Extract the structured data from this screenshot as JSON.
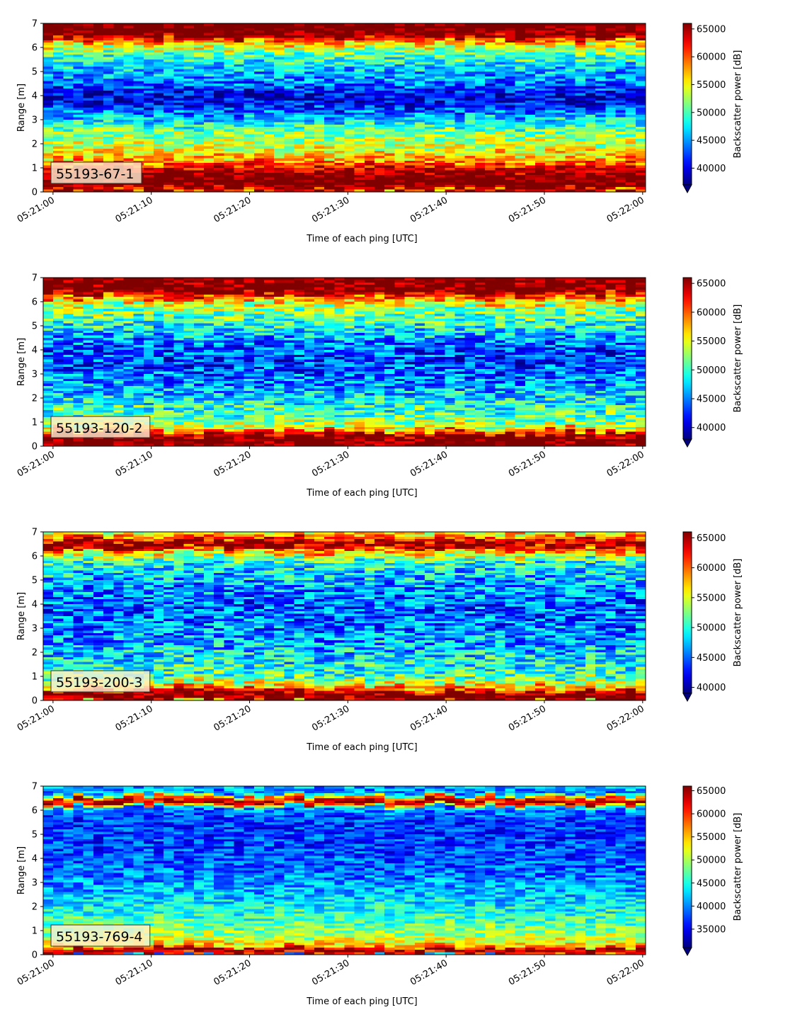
{
  "chart_data": [
    {
      "type": "heatmap",
      "label": "55193-67-1",
      "xlabel": "Time of each ping [UTC]",
      "ylabel": "Range [m]",
      "xticks": [
        "05:21:00",
        "05:21:10",
        "05:21:20",
        "05:21:30",
        "05:21:40",
        "05:21:50",
        "05:22:00"
      ],
      "xlim_seconds": [
        -1,
        60.3
      ],
      "yticks": [
        0,
        1,
        2,
        3,
        4,
        5,
        6,
        7
      ],
      "ylim": [
        0,
        7
      ],
      "colorbar": {
        "label": "Backscatter power [dB]",
        "ticks": [
          40000,
          45000,
          50000,
          55000,
          60000,
          65000
        ],
        "range": [
          37000,
          66000
        ],
        "extend": "min"
      },
      "colormap": "jet",
      "profile": [
        {
          "range": 0.0,
          "value": 58000
        },
        {
          "range": 0.25,
          "value": 68000
        },
        {
          "range": 0.7,
          "value": 67000
        },
        {
          "range": 1.1,
          "value": 61000
        },
        {
          "range": 1.4,
          "value": 57000
        },
        {
          "range": 1.8,
          "value": 54000
        },
        {
          "range": 2.4,
          "value": 52000
        },
        {
          "range": 3.0,
          "value": 47000
        },
        {
          "range": 3.6,
          "value": 41000
        },
        {
          "range": 4.0,
          "value": 39500
        },
        {
          "range": 4.5,
          "value": 44000
        },
        {
          "range": 5.2,
          "value": 47000
        },
        {
          "range": 5.8,
          "value": 51000
        },
        {
          "range": 6.2,
          "value": 57000
        },
        {
          "range": 6.5,
          "value": 67000
        },
        {
          "range": 7.0,
          "value": 68000
        }
      ],
      "noise": 4500
    },
    {
      "type": "heatmap",
      "label": "55193-120-2",
      "xlabel": "Time of each ping [UTC]",
      "ylabel": "Range [m]",
      "xticks": [
        "05:21:00",
        "05:21:10",
        "05:21:20",
        "05:21:30",
        "05:21:40",
        "05:21:50",
        "05:22:00"
      ],
      "xlim_seconds": [
        -1,
        60.3
      ],
      "yticks": [
        0,
        1,
        2,
        3,
        4,
        5,
        6,
        7
      ],
      "ylim": [
        0,
        7
      ],
      "colorbar": {
        "label": "Backscatter power [dB]",
        "ticks": [
          40000,
          45000,
          50000,
          55000,
          60000,
          65000
        ],
        "range": [
          38000,
          66000
        ],
        "extend": "min"
      },
      "colormap": "jet",
      "profile": [
        {
          "range": 0.0,
          "value": 66000
        },
        {
          "range": 0.3,
          "value": 68000
        },
        {
          "range": 0.55,
          "value": 63000
        },
        {
          "range": 0.8,
          "value": 54000
        },
        {
          "range": 1.5,
          "value": 50000
        },
        {
          "range": 2.5,
          "value": 46000
        },
        {
          "range": 3.5,
          "value": 43000
        },
        {
          "range": 4.2,
          "value": 44000
        },
        {
          "range": 5.0,
          "value": 49000
        },
        {
          "range": 5.8,
          "value": 53000
        },
        {
          "range": 6.2,
          "value": 60000
        },
        {
          "range": 6.5,
          "value": 68000
        },
        {
          "range": 7.0,
          "value": 66000
        }
      ],
      "noise": 5000
    },
    {
      "type": "heatmap",
      "label": "55193-200-3",
      "xlabel": "Time of each ping [UTC]",
      "ylabel": "Range [m]",
      "xticks": [
        "05:21:00",
        "05:21:10",
        "05:21:20",
        "05:21:30",
        "05:21:40",
        "05:21:50",
        "05:22:00"
      ],
      "xlim_seconds": [
        -1,
        60.3
      ],
      "yticks": [
        0,
        1,
        2,
        3,
        4,
        5,
        6,
        7
      ],
      "ylim": [
        0,
        7
      ],
      "colorbar": {
        "label": "Backscatter power [dB]",
        "ticks": [
          40000,
          45000,
          50000,
          55000,
          60000,
          65000
        ],
        "range": [
          39000,
          66000
        ],
        "extend": "min"
      },
      "colormap": "jet",
      "profile": [
        {
          "range": 0.0,
          "value": 66000
        },
        {
          "range": 0.3,
          "value": 67000
        },
        {
          "range": 0.6,
          "value": 57000
        },
        {
          "range": 1.0,
          "value": 51000
        },
        {
          "range": 2.0,
          "value": 48000
        },
        {
          "range": 3.0,
          "value": 45500
        },
        {
          "range": 4.0,
          "value": 45000
        },
        {
          "range": 5.0,
          "value": 47000
        },
        {
          "range": 5.8,
          "value": 50000
        },
        {
          "range": 6.2,
          "value": 58000
        },
        {
          "range": 6.5,
          "value": 67000
        },
        {
          "range": 6.8,
          "value": 60000
        },
        {
          "range": 7.0,
          "value": 56000
        }
      ],
      "noise": 5000
    },
    {
      "type": "heatmap",
      "label": "55193-769-4",
      "xlabel": "Time of each ping [UTC]",
      "ylabel": "Range [m]",
      "xticks": [
        "05:21:00",
        "05:21:10",
        "05:21:20",
        "05:21:30",
        "05:21:40",
        "05:21:50",
        "05:22:00"
      ],
      "xlim_seconds": [
        -1,
        60.3
      ],
      "yticks": [
        0,
        1,
        2,
        3,
        4,
        5,
        6,
        7
      ],
      "ylim": [
        0,
        7
      ],
      "colorbar": {
        "label": "Backscatter power [dB]",
        "ticks": [
          35000,
          40000,
          45000,
          50000,
          55000,
          60000,
          65000
        ],
        "range": [
          31000,
          66000
        ],
        "extend": "min"
      },
      "colormap": "jet",
      "profile": [
        {
          "range": 0.0,
          "value": 58000
        },
        {
          "range": 0.2,
          "value": 67000
        },
        {
          "range": 0.35,
          "value": 55000
        },
        {
          "range": 0.8,
          "value": 50000
        },
        {
          "range": 1.5,
          "value": 46000
        },
        {
          "range": 2.5,
          "value": 42000
        },
        {
          "range": 3.5,
          "value": 39000
        },
        {
          "range": 4.5,
          "value": 37500
        },
        {
          "range": 5.5,
          "value": 37000
        },
        {
          "range": 6.1,
          "value": 40000
        },
        {
          "range": 6.3,
          "value": 66000
        },
        {
          "range": 6.5,
          "value": 60000
        },
        {
          "range": 6.7,
          "value": 40000
        },
        {
          "range": 7.0,
          "value": 41000
        }
      ],
      "noise": 4500
    }
  ]
}
